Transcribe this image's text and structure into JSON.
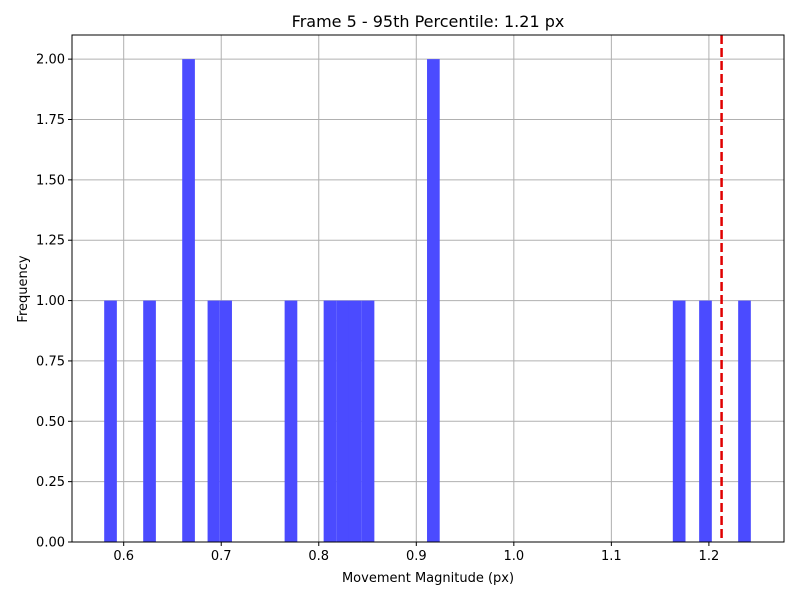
{
  "chart_data": {
    "type": "bar",
    "subtype": "histogram",
    "title": "Frame 5 - 95th Percentile: 1.21 px",
    "xlabel": "Movement Magnitude (px)",
    "ylabel": "Frequency",
    "xlim": [
      0.547,
      1.277
    ],
    "ylim": [
      0.0,
      2.1
    ],
    "grid": true,
    "bar_color": "#4b4bff",
    "x_ticks": [
      0.6,
      0.7,
      0.8,
      0.9,
      1.0,
      1.1,
      1.2
    ],
    "x_tick_labels": [
      "0.6",
      "0.7",
      "0.8",
      "0.9",
      "1.0",
      "1.1",
      "1.2"
    ],
    "y_ticks": [
      0.0,
      0.25,
      0.5,
      0.75,
      1.0,
      1.25,
      1.5,
      1.75,
      2.0
    ],
    "y_tick_labels": [
      "0.00",
      "0.25",
      "0.50",
      "0.75",
      "1.00",
      "1.25",
      "1.50",
      "1.75",
      "2.00"
    ],
    "bins": [
      {
        "x0": 0.58,
        "x1": 0.593,
        "count": 1
      },
      {
        "x0": 0.62,
        "x1": 0.633,
        "count": 1
      },
      {
        "x0": 0.66,
        "x1": 0.673,
        "count": 2
      },
      {
        "x0": 0.686,
        "x1": 0.698,
        "count": 1
      },
      {
        "x0": 0.698,
        "x1": 0.711,
        "count": 1
      },
      {
        "x0": 0.765,
        "x1": 0.778,
        "count": 1
      },
      {
        "x0": 0.805,
        "x1": 0.818,
        "count": 1
      },
      {
        "x0": 0.818,
        "x1": 0.831,
        "count": 1
      },
      {
        "x0": 0.831,
        "x1": 0.844,
        "count": 1
      },
      {
        "x0": 0.844,
        "x1": 0.857,
        "count": 1
      },
      {
        "x0": 0.911,
        "x1": 0.924,
        "count": 2
      },
      {
        "x0": 1.163,
        "x1": 1.176,
        "count": 1
      },
      {
        "x0": 1.19,
        "x1": 1.203,
        "count": 1
      },
      {
        "x0": 1.23,
        "x1": 1.243,
        "count": 1
      }
    ],
    "reference_line": {
      "x": 1.213,
      "color": "#e00000",
      "style": "dashed"
    }
  }
}
